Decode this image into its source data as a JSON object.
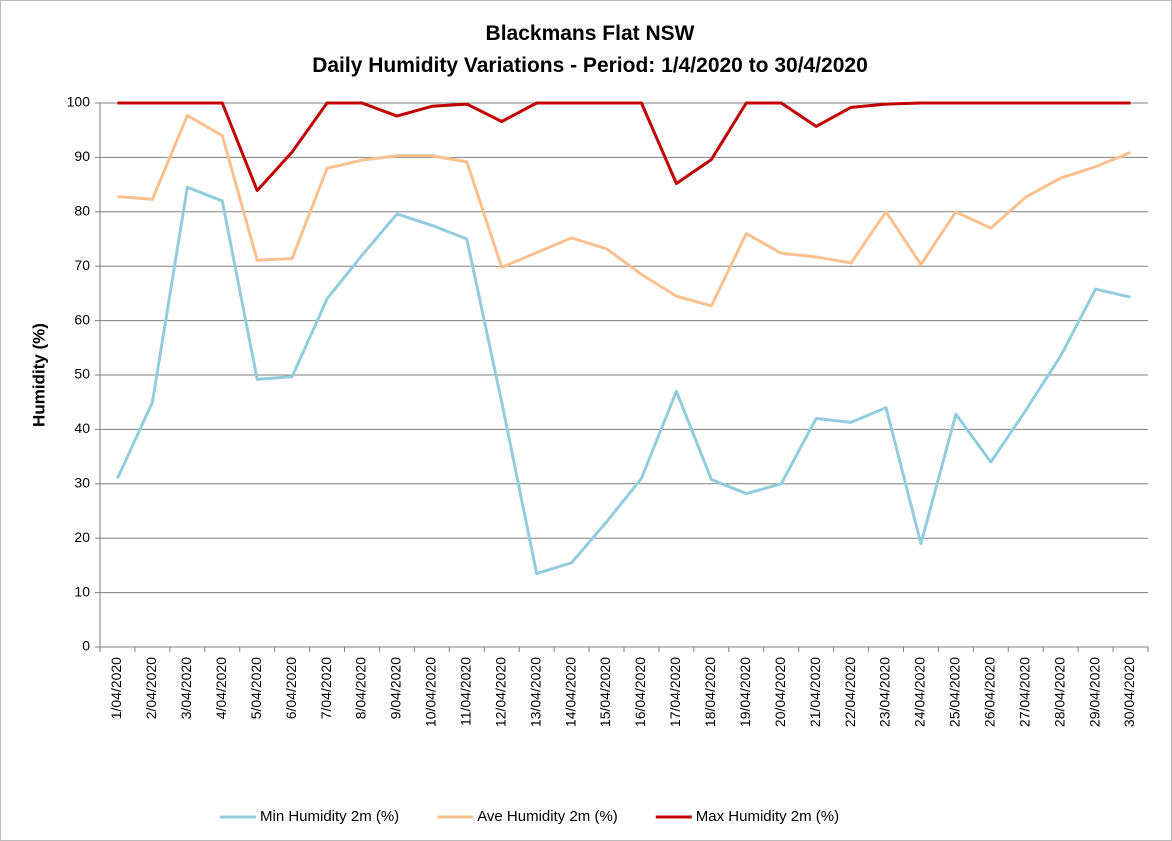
{
  "chart_data": {
    "type": "line",
    "title": "Blackmans Flat NSW",
    "subtitle": "Daily Humidity Variations - Period: 1/4/2020 to 30/4/2020",
    "y_label": "Humidity (%)",
    "categories": [
      "1/04/2020",
      "2/04/2020",
      "3/04/2020",
      "4/04/2020",
      "5/04/2020",
      "6/04/2020",
      "7/04/2020",
      "8/04/2020",
      "9/04/2020",
      "10/04/2020",
      "11/04/2020",
      "12/04/2020",
      "13/04/2020",
      "14/04/2020",
      "15/04/2020",
      "16/04/2020",
      "17/04/2020",
      "18/04/2020",
      "19/04/2020",
      "20/04/2020",
      "21/04/2020",
      "22/04/2020",
      "23/04/2020",
      "24/04/2020",
      "25/04/2020",
      "26/04/2020",
      "27/04/2020",
      "28/04/2020",
      "29/04/2020",
      "30/04/2020"
    ],
    "series": [
      {
        "name": "Min Humidity 2m (%)",
        "color": "#93cddd",
        "values": [
          31,
          45,
          84.5,
          82,
          49.2,
          49.7,
          64,
          72,
          79.6,
          77.5,
          75,
          45,
          13.5,
          15.5,
          23,
          31,
          47,
          30.8,
          28.2,
          30,
          42,
          41.3,
          44,
          19,
          42.8,
          34,
          43.5,
          53.5,
          65.8,
          64.3
        ]
      },
      {
        "name": "Ave Humidity 2m (%)",
        "color": "#fac090",
        "values": [
          82.8,
          82.3,
          97.7,
          94,
          71.1,
          71.4,
          88,
          89.5,
          90.3,
          90.3,
          89.2,
          69.8,
          72.5,
          75.2,
          73.2,
          68.5,
          64.5,
          62.7,
          76,
          72.4,
          71.7,
          70.6,
          80,
          70.3,
          80,
          77,
          82.7,
          86.2,
          88.3,
          90.9
        ]
      },
      {
        "name": "Max Humidity 2m (%)",
        "color": "#c00000",
        "values": [
          100,
          100,
          100,
          100,
          83.9,
          91,
          100,
          100,
          97.6,
          99.4,
          99.8,
          96.6,
          100,
          100,
          100,
          100,
          85.2,
          89.6,
          100,
          100,
          95.7,
          99.2,
          99.8,
          100,
          100,
          100,
          100,
          100,
          100,
          100
        ]
      }
    ],
    "ylim": [
      0,
      100
    ],
    "yticks": [
      0,
      10,
      20,
      30,
      40,
      50,
      60,
      70,
      80,
      90,
      100
    ],
    "grid": true,
    "legend": "bottom"
  }
}
